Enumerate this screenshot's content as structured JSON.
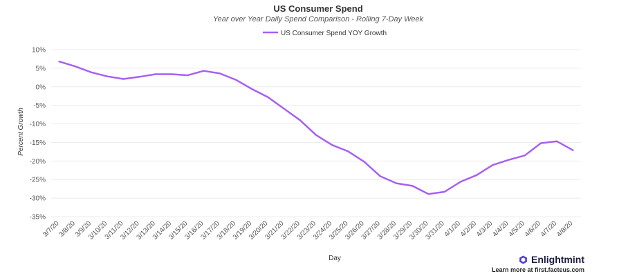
{
  "brand": {
    "name": "Enlightmint",
    "tagline": "Learn more at first.facteus.com",
    "logo_color": "#4b3bd1"
  },
  "chart_data": {
    "type": "line",
    "title": "US Consumer Spend",
    "subtitle": "Year over Year Daily Spend Comparison - Rolling 7-Day Week",
    "xlabel": "Day",
    "ylabel": "Percent Growth",
    "ylim": [
      -35,
      10
    ],
    "yticks": [
      10,
      5,
      0,
      -5,
      -10,
      -15,
      -20,
      -25,
      -30,
      -35
    ],
    "ytick_labels": [
      "10%",
      "5%",
      "0%",
      "-5%",
      "-10%",
      "-15%",
      "-20%",
      "-25%",
      "-30%",
      "-35%"
    ],
    "grid": true,
    "legend_position": "top-center",
    "categories": [
      "3/7/20",
      "3/8/20",
      "3/9/20",
      "3/10/20",
      "3/11/20",
      "3/12/20",
      "3/13/20",
      "3/14/20",
      "3/15/20",
      "3/16/20",
      "3/17/20",
      "3/18/20",
      "3/19/20",
      "3/20/20",
      "3/21/20",
      "3/22/20",
      "3/23/20",
      "3/24/20",
      "3/25/20",
      "3/26/20",
      "3/27/20",
      "3/28/20",
      "3/29/20",
      "3/30/20",
      "3/31/20",
      "4/1/20",
      "4/2/20",
      "4/3/20",
      "4/4/20",
      "4/5/20",
      "4/6/20",
      "4/7/20",
      "4/8/20"
    ],
    "series": [
      {
        "name": "US Consumer Spend YOY Growth",
        "color": "#a660f2",
        "values": [
          6.8,
          5.5,
          3.9,
          2.8,
          2.1,
          2.7,
          3.4,
          3.4,
          3.1,
          4.3,
          3.6,
          1.9,
          -0.6,
          -2.8,
          -5.9,
          -9.0,
          -13.0,
          -15.7,
          -17.4,
          -20.2,
          -24.1,
          -26.0,
          -26.7,
          -28.9,
          -28.3,
          -25.6,
          -23.8,
          -21.1,
          -19.7,
          -18.5,
          -15.2,
          -14.7,
          -17.1
        ]
      }
    ]
  }
}
